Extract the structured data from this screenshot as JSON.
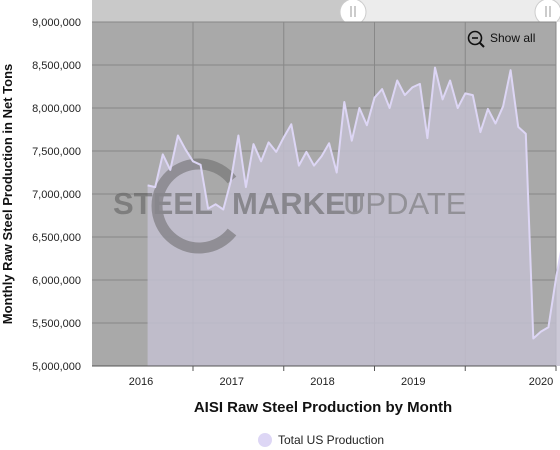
{
  "chart_data": {
    "type": "area",
    "title": "",
    "xlabel": "AISI Raw Steel Production by Month",
    "ylabel": "Monthly Raw Steel Production in Net Tons",
    "ylim": [
      5000000,
      9000000
    ],
    "yticks": [
      "9,000,000",
      "8,500,000",
      "8,000,000",
      "7,500,000",
      "7,000,000",
      "6,500,000",
      "6,000,000",
      "5,500,000",
      "5,000,000"
    ],
    "xticks": [
      "2016",
      "2017",
      "2018",
      "2019",
      "2020"
    ],
    "grid": true,
    "legend": "bottom-center",
    "x_start": "2015-07",
    "series": [
      {
        "name": "Total US Production",
        "values": [
          7100000,
          7080000,
          7460000,
          7280000,
          7680000,
          7520000,
          7380000,
          7340000,
          6830000,
          6880000,
          6820000,
          7150000,
          7680000,
          7080000,
          7580000,
          7380000,
          7600000,
          7490000,
          7660000,
          7810000,
          7330000,
          7490000,
          7330000,
          7440000,
          7590000,
          7250000,
          8070000,
          7620000,
          8000000,
          7800000,
          8120000,
          8220000,
          8000000,
          8320000,
          8150000,
          8240000,
          8280000,
          7650000,
          8470000,
          8100000,
          8320000,
          8000000,
          8170000,
          8150000,
          7720000,
          7990000,
          7820000,
          8020000,
          8440000,
          7780000,
          7700000,
          5320000,
          5400000,
          5450000,
          6020000,
          6500000
        ]
      }
    ],
    "colors": {
      "line": "#ddd6f5",
      "fill": "#c3bfd0",
      "plot_bg": "#a9a9a9",
      "grid": "#888888"
    }
  },
  "navigator": {
    "show_all_label": "Show all"
  },
  "watermark": {
    "part1": "STEEL",
    "part2": "MARKET",
    "part3": "UPDATE"
  },
  "legend": {
    "label": "Total US Production"
  }
}
